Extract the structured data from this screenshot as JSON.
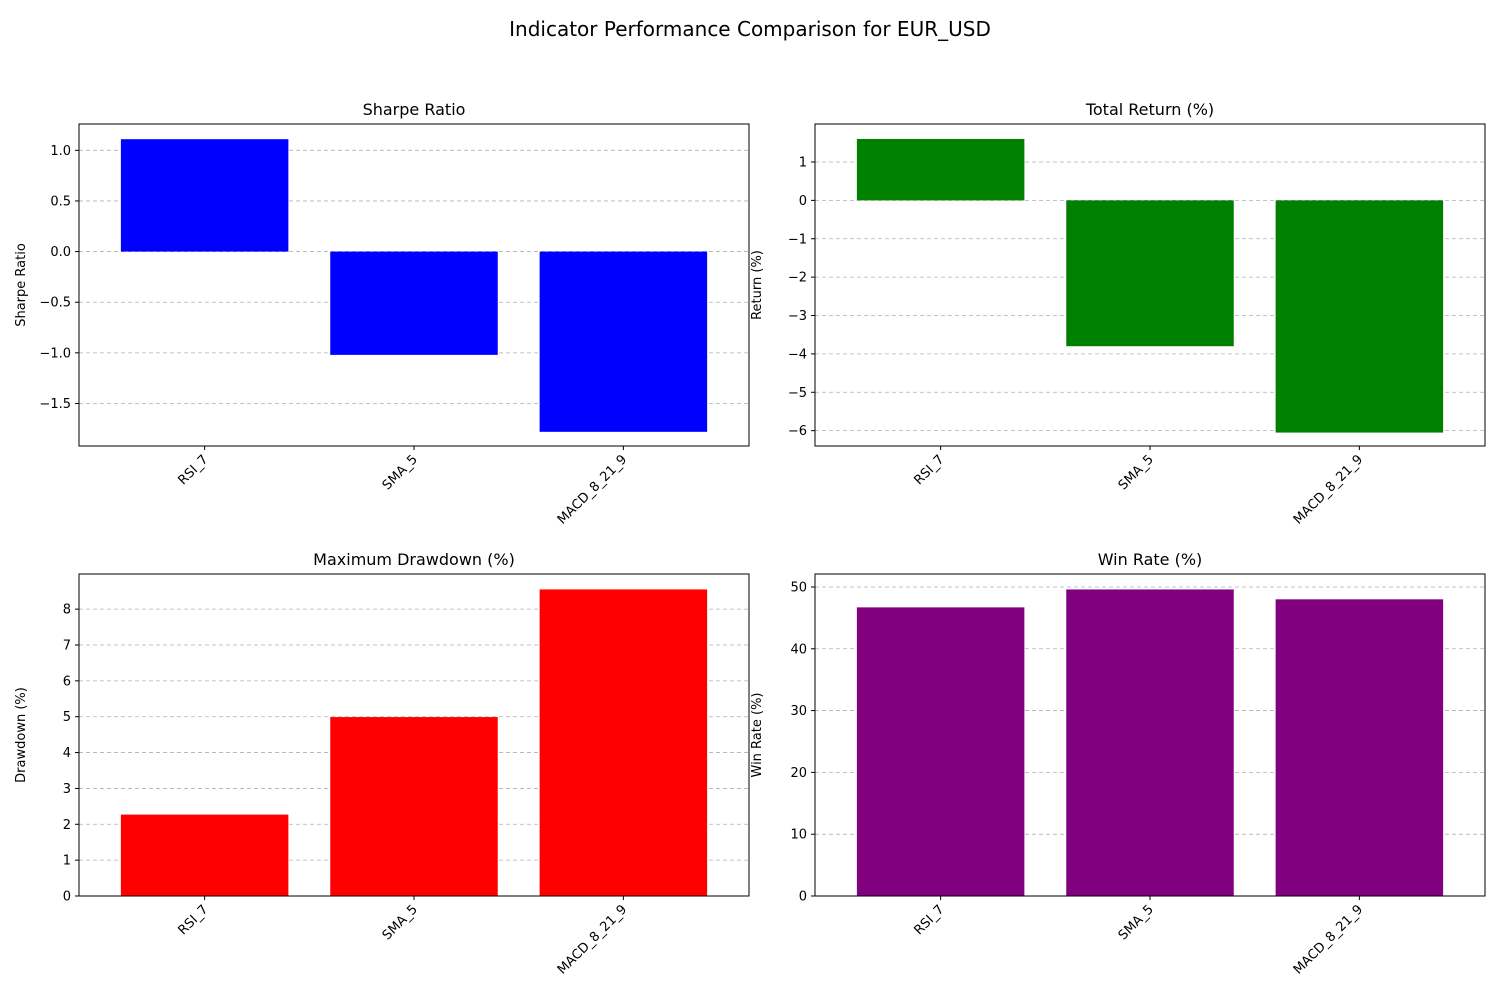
{
  "figure_title": "Indicator Performance Comparison for EUR_USD",
  "chart_data": [
    {
      "type": "bar",
      "title": "Sharpe Ratio",
      "xlabel": "",
      "ylabel": "Sharpe Ratio",
      "categories": [
        "RSI_7",
        "SMA_5",
        "MACD_8_21_9"
      ],
      "values": [
        1.11,
        -1.02,
        -1.78
      ],
      "ylim": [
        -1.92,
        1.26
      ],
      "yticks": [
        1.0,
        0.5,
        0.0,
        -0.5,
        -1.0,
        -1.5
      ],
      "ytick_labels": [
        "1.0",
        "0.5",
        "0.0",
        "−0.5",
        "−1.0",
        "−1.5"
      ],
      "color": "#0000ff",
      "grid": true
    },
    {
      "type": "bar",
      "title": "Total Return (%)",
      "xlabel": "",
      "ylabel": "Return (%)",
      "categories": [
        "RSI_7",
        "SMA_5",
        "MACD_8_21_9"
      ],
      "values": [
        1.6,
        -3.8,
        -6.05
      ],
      "ylim": [
        -6.4,
        1.99
      ],
      "yticks": [
        1,
        0,
        -1,
        -2,
        -3,
        -4,
        -5,
        -6
      ],
      "ytick_labels": [
        "1",
        "0",
        "−1",
        "−2",
        "−3",
        "−4",
        "−5",
        "−6"
      ],
      "color": "#008000",
      "grid": true
    },
    {
      "type": "bar",
      "title": "Maximum Drawdown (%)",
      "xlabel": "",
      "ylabel": "Drawdown (%)",
      "categories": [
        "RSI_7",
        "SMA_5",
        "MACD_8_21_9"
      ],
      "values": [
        2.27,
        4.99,
        8.55
      ],
      "ylim": [
        0,
        8.98
      ],
      "yticks": [
        0,
        1,
        2,
        3,
        4,
        5,
        6,
        7,
        8
      ],
      "ytick_labels": [
        "0",
        "1",
        "2",
        "3",
        "4",
        "5",
        "6",
        "7",
        "8"
      ],
      "color": "#ff0000",
      "grid": true
    },
    {
      "type": "bar",
      "title": "Win Rate (%)",
      "xlabel": "",
      "ylabel": "Win Rate (%)",
      "categories": [
        "RSI_7",
        "SMA_5",
        "MACD_8_21_9"
      ],
      "values": [
        46.7,
        49.6,
        48.0
      ],
      "ylim": [
        0,
        52.1
      ],
      "yticks": [
        0,
        10,
        20,
        30,
        40,
        50
      ],
      "ytick_labels": [
        "0",
        "10",
        "20",
        "30",
        "40",
        "50"
      ],
      "color": "#800080",
      "grid": true
    }
  ]
}
